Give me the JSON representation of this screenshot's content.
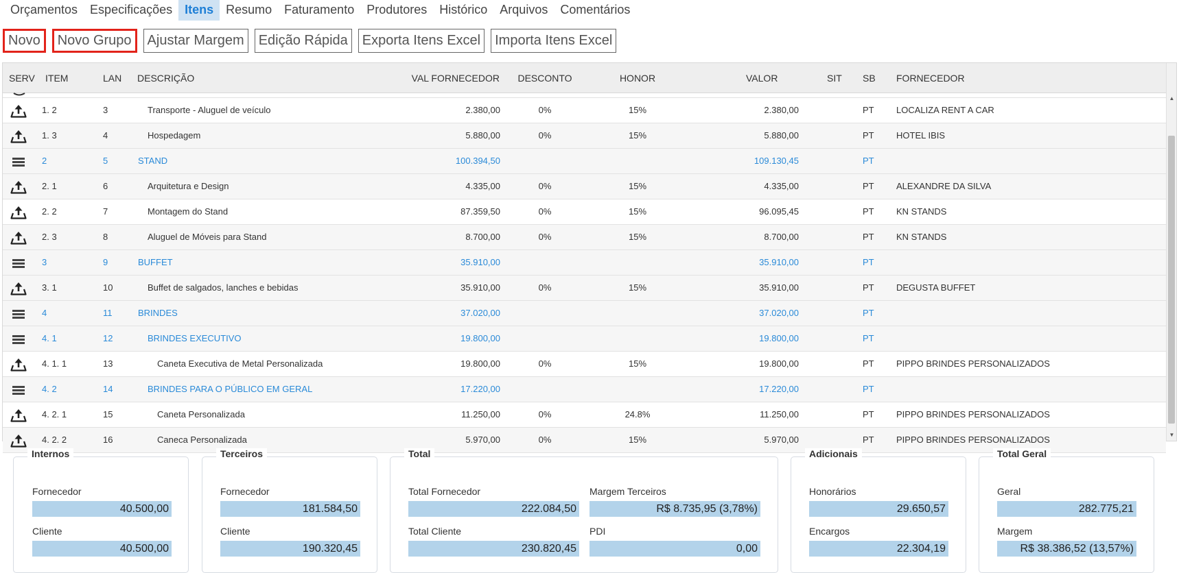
{
  "tabs": [
    "Orçamentos",
    "Especificações",
    "Itens",
    "Resumo",
    "Faturamento",
    "Produtores",
    "Histórico",
    "Arquivos",
    "Comentários"
  ],
  "active_tab": "Itens",
  "toolbar": {
    "novo": "Novo",
    "novo_grupo": "Novo Grupo",
    "ajustar_margem": "Ajustar Margem",
    "edicao_rapida": "Edição Rápida",
    "exporta_excel": "Exporta Itens Excel",
    "importa_excel": "Importa Itens Excel"
  },
  "table": {
    "headers": {
      "serv": "SERV",
      "item": "ITEM",
      "lan": "LAN",
      "descricao": "DESCRIÇÃO",
      "val_fornecedor": "VAL FORNECEDOR",
      "desconto": "DESCONTO",
      "honor": "HONOR",
      "valor": "VALOR",
      "sit": "SIT",
      "sb": "SB",
      "fornecedor": "FORNECEDOR"
    },
    "rows": [
      {
        "type": "item",
        "level": 1,
        "item": "1. 2",
        "lan": "3",
        "desc": "Transporte - Aluguel de veículo",
        "val_forn": "2.380,00",
        "desconto": "0%",
        "honor": "15%",
        "valor": "2.380,00",
        "sit": "",
        "sb": "PT",
        "fornecedor": "LOCALIZA RENT A CAR"
      },
      {
        "type": "item",
        "level": 1,
        "item": "1. 3",
        "lan": "4",
        "desc": "Hospedagem",
        "val_forn": "5.880,00",
        "desconto": "0%",
        "honor": "15%",
        "valor": "5.880,00",
        "sit": "",
        "sb": "PT",
        "fornecedor": "HOTEL IBIS"
      },
      {
        "type": "group",
        "level": 0,
        "item": "2",
        "lan": "5",
        "desc": "STAND",
        "val_forn": "100.394,50",
        "desconto": "",
        "honor": "",
        "valor": "109.130,45",
        "sit": "",
        "sb": "PT",
        "fornecedor": ""
      },
      {
        "type": "item",
        "level": 1,
        "item": "2. 1",
        "lan": "6",
        "desc": "Arquitetura e Design",
        "val_forn": "4.335,00",
        "desconto": "0%",
        "honor": "15%",
        "valor": "4.335,00",
        "sit": "",
        "sb": "PT",
        "fornecedor": "ALEXANDRE DA SILVA"
      },
      {
        "type": "item",
        "level": 1,
        "item": "2. 2",
        "lan": "7",
        "desc": "Montagem do Stand",
        "val_forn": "87.359,50",
        "desconto": "0%",
        "honor": "15%",
        "valor": "96.095,45",
        "sit": "",
        "sb": "PT",
        "fornecedor": "KN STANDS"
      },
      {
        "type": "item",
        "level": 1,
        "item": "2. 3",
        "lan": "8",
        "desc": "Aluguel de Móveis para Stand",
        "val_forn": "8.700,00",
        "desconto": "0%",
        "honor": "15%",
        "valor": "8.700,00",
        "sit": "",
        "sb": "PT",
        "fornecedor": "KN STANDS"
      },
      {
        "type": "group",
        "level": 0,
        "item": "3",
        "lan": "9",
        "desc": "BUFFET",
        "val_forn": "35.910,00",
        "desconto": "",
        "honor": "",
        "valor": "35.910,00",
        "sit": "",
        "sb": "PT",
        "fornecedor": ""
      },
      {
        "type": "item",
        "level": 1,
        "item": "3. 1",
        "lan": "10",
        "desc": "Buffet de salgados, lanches e bebidas",
        "val_forn": "35.910,00",
        "desconto": "0%",
        "honor": "15%",
        "valor": "35.910,00",
        "sit": "",
        "sb": "PT",
        "fornecedor": "DEGUSTA BUFFET"
      },
      {
        "type": "group",
        "level": 0,
        "item": "4",
        "lan": "11",
        "desc": "BRINDES",
        "val_forn": "37.020,00",
        "desconto": "",
        "honor": "",
        "valor": "37.020,00",
        "sit": "",
        "sb": "PT",
        "fornecedor": ""
      },
      {
        "type": "group",
        "level": 1,
        "item": "4. 1",
        "lan": "12",
        "desc": "BRINDES EXECUTIVO",
        "val_forn": "19.800,00",
        "desconto": "",
        "honor": "",
        "valor": "19.800,00",
        "sit": "",
        "sb": "PT",
        "fornecedor": ""
      },
      {
        "type": "item",
        "level": 2,
        "item": "4. 1. 1",
        "lan": "13",
        "desc": "Caneta Executiva de Metal Personalizada",
        "val_forn": "19.800,00",
        "desconto": "0%",
        "honor": "15%",
        "valor": "19.800,00",
        "sit": "",
        "sb": "PT",
        "fornecedor": "PIPPO BRINDES PERSONALIZADOS"
      },
      {
        "type": "group",
        "level": 1,
        "item": "4. 2",
        "lan": "14",
        "desc": "BRINDES PARA O PÚBLICO EM GERAL",
        "val_forn": "17.220,00",
        "desconto": "",
        "honor": "",
        "valor": "17.220,00",
        "sit": "",
        "sb": "PT",
        "fornecedor": ""
      },
      {
        "type": "item",
        "level": 2,
        "item": "4. 2. 1",
        "lan": "15",
        "desc": "Caneta Personalizada",
        "val_forn": "11.250,00",
        "desconto": "0%",
        "honor": "24.8%",
        "valor": "11.250,00",
        "sit": "",
        "sb": "PT",
        "fornecedor": "PIPPO BRINDES PERSONALIZADOS"
      },
      {
        "type": "item",
        "level": 2,
        "item": "4. 2. 2",
        "lan": "16",
        "desc": "Caneca Personalizada",
        "val_forn": "5.970,00",
        "desconto": "0%",
        "honor": "15%",
        "valor": "5.970,00",
        "sit": "",
        "sb": "PT",
        "fornecedor": "PIPPO BRINDES PERSONALIZADOS"
      }
    ]
  },
  "summary": {
    "internos": {
      "title": "Internos",
      "fornecedor_label": "Fornecedor",
      "fornecedor": "40.500,00",
      "cliente_label": "Cliente",
      "cliente": "40.500,00"
    },
    "terceiros": {
      "title": "Terceiros",
      "fornecedor_label": "Fornecedor",
      "fornecedor": "181.584,50",
      "cliente_label": "Cliente",
      "cliente": "190.320,45"
    },
    "total": {
      "title": "Total",
      "total_fornecedor_label": "Total Fornecedor",
      "total_fornecedor": "222.084,50",
      "margem_terceiros_label": "Margem Terceiros",
      "margem_terceiros": "R$ 8.735,95 (3,78%)",
      "total_cliente_label": "Total Cliente",
      "total_cliente": "230.820,45",
      "pdi_label": "PDI",
      "pdi": "0,00"
    },
    "adicionais": {
      "title": "Adicionais",
      "honorarios_label": "Honorários",
      "honorarios": "29.650,57",
      "encargos_label": "Encargos",
      "encargos": "22.304,19"
    },
    "total_geral": {
      "title": "Total Geral",
      "geral_label": "Geral",
      "geral": "282.775,21",
      "margem_label": "Margem",
      "margem": "R$ 38.386,52 (13,57%)"
    }
  }
}
